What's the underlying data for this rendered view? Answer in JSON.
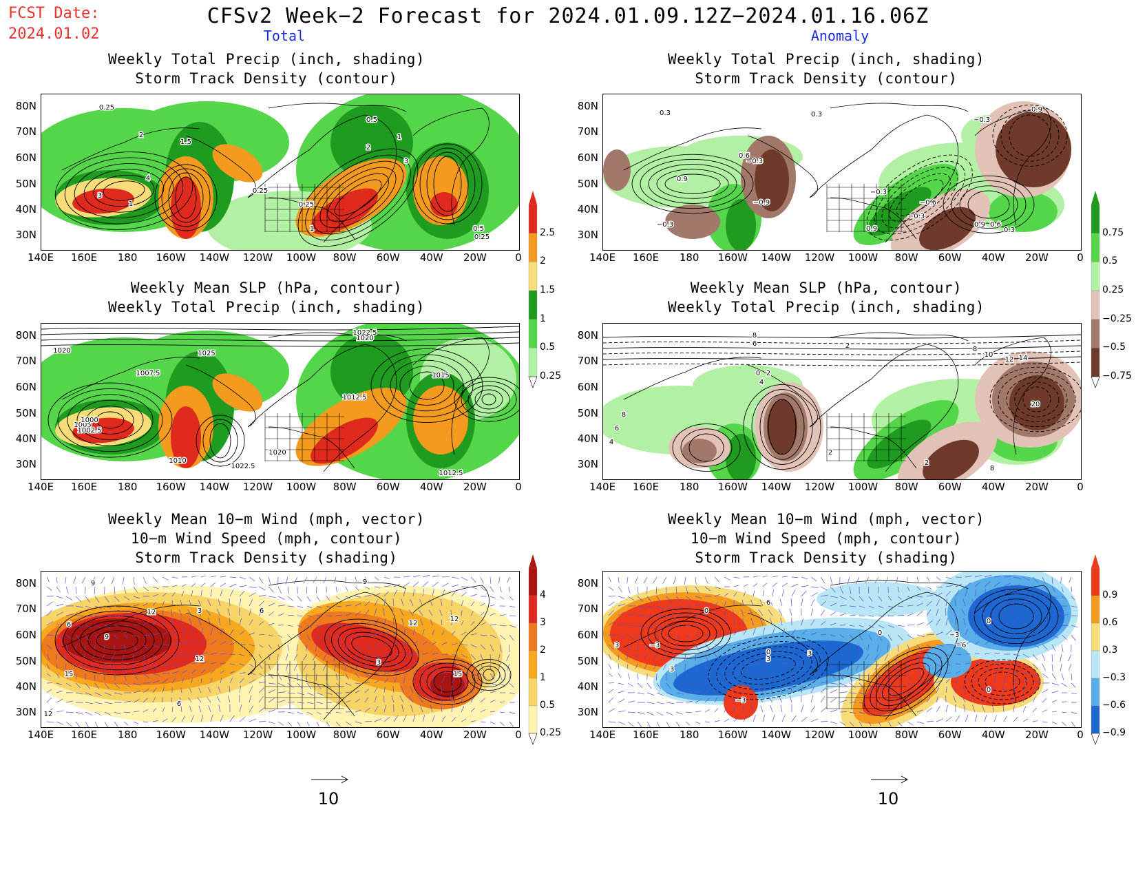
{
  "header": {
    "fcst_label": "FCST Date:",
    "fcst_date": "2024.01.02",
    "title": "CFSv2 Week−2 Forecast for 2024.01.09.12Z−2024.01.16.06Z",
    "col_total": "Total",
    "col_anomaly": "Anomaly"
  },
  "panels": {
    "p1": {
      "line1": "Weekly Total Precip (inch, shading)",
      "line2": "Storm Track Density (contour)",
      "line3": ""
    },
    "p2": {
      "line1": "Weekly Total Precip (inch, shading)",
      "line2": "Storm Track Density (contour)",
      "line3": ""
    },
    "p3": {
      "line1": "Weekly Mean SLP (hPa, contour)",
      "line2": "Weekly Total Precip (inch, shading)",
      "line3": ""
    },
    "p4": {
      "line1": "Weekly Mean SLP (hPa, contour)",
      "line2": "Weekly Total Precip (inch, shading)",
      "line3": ""
    },
    "p5": {
      "line1": "Weekly Mean 10−m Wind (mph, vector)",
      "line2": "10−m Wind Speed (mph, contour)",
      "line3": "Storm Track Density (shading)"
    },
    "p6": {
      "line1": "Weekly Mean 10−m Wind (mph, vector)",
      "line2": "10−m Wind Speed (mph, contour)",
      "line3": "Storm Track Density (shading)"
    }
  },
  "axes": {
    "lat_ticks": [
      "80N",
      "70N",
      "60N",
      "50N",
      "40N",
      "30N"
    ],
    "lon_ticks": [
      "140E",
      "160E",
      "180",
      "160W",
      "140W",
      "120W",
      "100W",
      "80W",
      "60W",
      "40W",
      "20W",
      "0"
    ]
  },
  "colorbars": {
    "precip_total": {
      "labels": [
        "2.5",
        "2",
        "1.5",
        "1",
        "0.5",
        "0.25"
      ],
      "colors": [
        "#e02a1e",
        "#f39a1f",
        "#f7dc7a",
        "#1f9b20",
        "#55d64a",
        "#b2f0a4"
      ]
    },
    "precip_anom": {
      "labels": [
        "0.75",
        "0.5",
        "0.25",
        "−0.25",
        "−0.5",
        "−0.75"
      ],
      "colors": [
        "#1f9b20",
        "#55d64a",
        "#b2f0a4",
        "#e2c2b6",
        "#a2786a",
        "#6e3b2a"
      ]
    },
    "storm_total": {
      "labels": [
        "4",
        "3",
        "2",
        "1",
        "0.5",
        "0.25"
      ],
      "colors": [
        "#a8140f",
        "#e02a1e",
        "#ef7a1e",
        "#f7a81e",
        "#f7d466",
        "#fff3b0"
      ]
    },
    "storm_anom": {
      "labels": [
        "0.9",
        "0.6",
        "0.3",
        "−0.3",
        "−0.6",
        "−0.9"
      ],
      "colors": [
        "#ee3a1a",
        "#f39a1f",
        "#f7dc7a",
        "#b8e6f5",
        "#5aaee8",
        "#1d68d0"
      ]
    }
  },
  "contour_labels": {
    "p1": [
      "0.25",
      "2",
      "1.5",
      "4",
      "3",
      "1",
      "0.25",
      "0.25",
      "0.5",
      "2",
      "1",
      "3",
      "1",
      "0.5",
      "0.25"
    ],
    "p2": [
      "0.3",
      "0.3",
      "0.9",
      "−0.3",
      "0.6",
      "−0.3",
      "−0.9",
      "−0.3",
      "0.9",
      "−0.6",
      "−0.3",
      "0.9",
      "0.6",
      "0.3",
      "−0.3",
      "0.9"
    ],
    "p3": [
      "1022.5",
      "1020",
      "1025",
      "1007.5",
      "1020",
      "1005",
      "1002.5",
      "1000",
      "1010",
      "1022.5",
      "1020",
      "1012.5",
      "1015",
      "1012.5"
    ],
    "p4": [
      "8",
      "6",
      "2",
      "8",
      "10",
      "12",
      "14",
      "20",
      "0",
      "4",
      "2",
      "8",
      "6",
      "4",
      "2",
      "2",
      "8"
    ],
    "p5": [
      "9",
      "6",
      "12",
      "9",
      "3",
      "15",
      "6",
      "12",
      "9",
      "12",
      "3",
      "12",
      "15",
      "6",
      "12"
    ],
    "p6": [
      "3",
      "0",
      "−3",
      "3",
      "3",
      "0",
      "3",
      "−3",
      "0",
      "−3",
      "−6",
      "0",
      "0",
      "6"
    ]
  },
  "vector_ref": {
    "value": "10"
  }
}
